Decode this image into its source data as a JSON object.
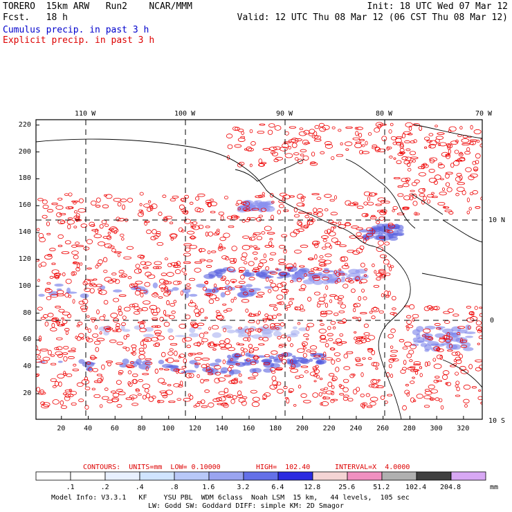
{
  "header": {
    "model": "TORERO  15km ARW   Run2    NCAR/MMM",
    "fcst": "Fcst.   18 h",
    "init": "Init: 18 UTC Wed 07 Mar 12",
    "valid": "Valid: 12 UTC Thu 08 Mar 12 (06 CST Thu 08 Mar 12)",
    "field1": "Cumulus precip. in past 3 h",
    "field2": "Explicit precip. in past 3 h"
  },
  "map": {
    "lon_labels": [
      "110 W",
      "100 W",
      "90 W",
      "80 W",
      "70 W"
    ],
    "lat_labels": [
      "10 N",
      "0",
      "10 S"
    ],
    "x_ticks": [
      "20",
      "40",
      "60",
      "80",
      "100",
      "120",
      "140",
      "160",
      "180",
      "200",
      "220",
      "240",
      "260",
      "280",
      "300",
      "320"
    ],
    "y_ticks": [
      "20",
      "40",
      "60",
      "80",
      "100",
      "120",
      "140",
      "160",
      "180",
      "200",
      "220"
    ]
  },
  "contour_info": {
    "contours": "CONTOURS:  UNITS=mm  LOW= 0.10000",
    "high": "HIGH=  102.40",
    "interval": "INTERVAL=X  4.0000"
  },
  "colorbar": {
    "levels": [
      ".1",
      ".2",
      ".4",
      ".8",
      "1.6",
      "3.2",
      "6.4",
      "12.8",
      "25.6",
      "51.2",
      "102.4",
      "204.8"
    ],
    "unit": "mm",
    "colors": [
      "#ffffff",
      "#ffffff",
      "#e8f0ff",
      "#d0e4ff",
      "#b8c8f8",
      "#9aa4f0",
      "#6470e8",
      "#2a2ae0",
      "#f4d4d4",
      "#f090c0",
      "#b0b0b0",
      "#404040",
      "#d8a8f4"
    ]
  },
  "footer": {
    "line1": "Model Info: V3.3.1   KF    YSU PBL  WDM 6class  Noah LSM  15 km,   44 levels,  105 sec",
    "line2": "LW: Godd SW: Goddard DIFF: simple KM: 2D Smagor"
  }
}
